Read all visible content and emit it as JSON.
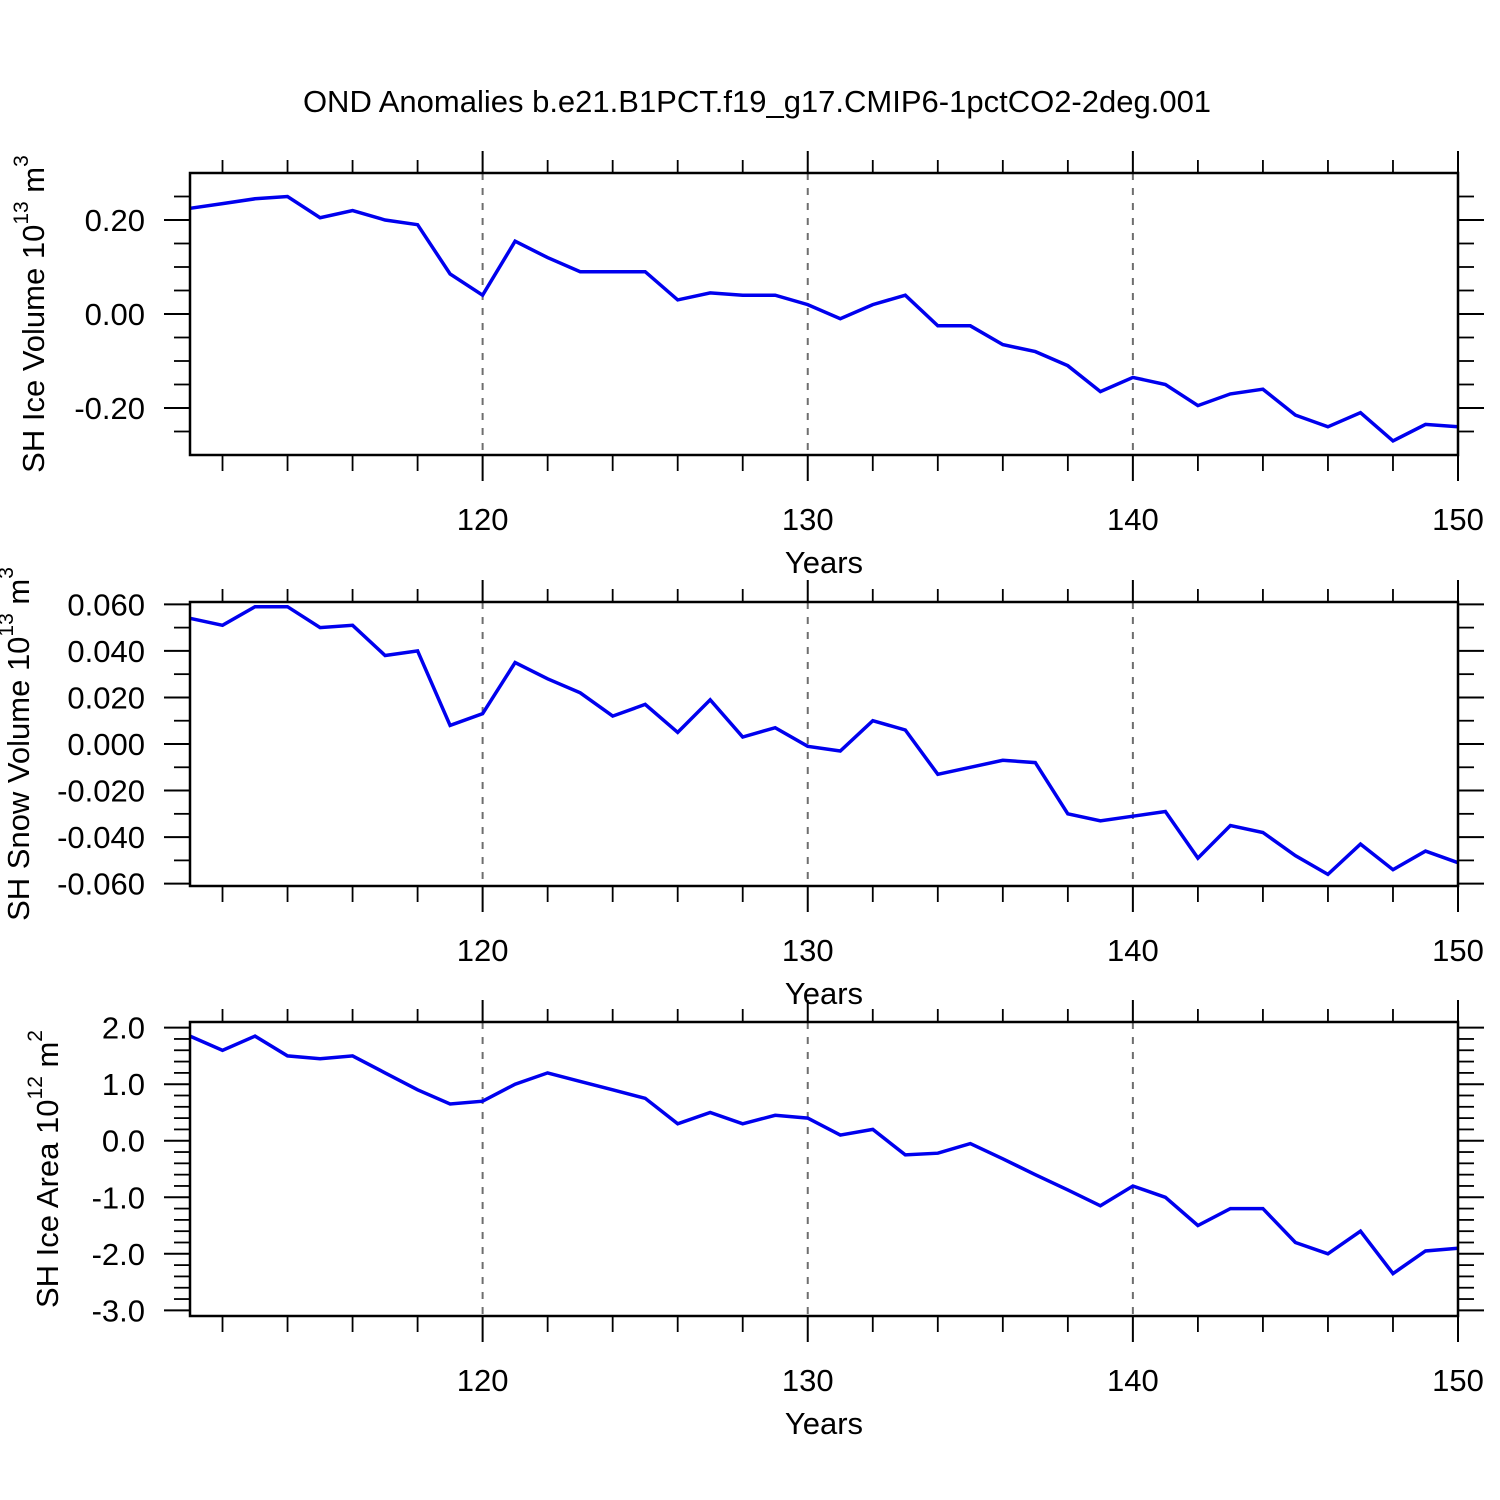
{
  "figure": {
    "title": "OND Anomalies b.e21.B1PCT.f19_g17.CMIP6-1pctCO2-2deg.001"
  },
  "colors": {
    "line": "#0000EE",
    "grid": "#6E6E6E",
    "axis": "#000000",
    "background": "#FFFFFF"
  },
  "chart_data": [
    {
      "type": "line",
      "name": "sh-ice-volume",
      "ylabel": "SH Ice Volume 10^13 m^3",
      "ylabel_parts": [
        {
          "text": "SH Ice Volume 10"
        },
        {
          "text": "13",
          "sup": true
        },
        {
          "text": " m"
        },
        {
          "text": "3",
          "sup": true
        }
      ],
      "xlabel": "Years",
      "xlim": [
        111,
        150
      ],
      "ylim": [
        -0.3,
        0.3
      ],
      "xticks": {
        "major": [
          120,
          130,
          140,
          150
        ],
        "labels": [
          "120",
          "130",
          "140",
          "150"
        ],
        "minor_step": 2
      },
      "yticks": {
        "major": [
          0.2,
          0.0,
          -0.2
        ],
        "labels": [
          "0.20",
          "0.00",
          "-0.20"
        ],
        "minor_step": 0.05
      },
      "grid_x": [
        120,
        130,
        140
      ],
      "legend": "none",
      "grid": "vertical-dashed",
      "x": [
        111,
        112,
        113,
        114,
        115,
        116,
        117,
        118,
        119,
        120,
        121,
        122,
        123,
        124,
        125,
        126,
        127,
        128,
        129,
        130,
        131,
        132,
        133,
        134,
        135,
        136,
        137,
        138,
        139,
        140,
        141,
        142,
        143,
        144,
        145,
        146,
        147,
        148,
        149,
        150
      ],
      "values": [
        0.225,
        0.235,
        0.245,
        0.25,
        0.205,
        0.22,
        0.2,
        0.19,
        0.085,
        0.04,
        0.155,
        0.12,
        0.09,
        0.09,
        0.09,
        0.03,
        0.045,
        0.04,
        0.04,
        0.02,
        -0.01,
        0.02,
        0.04,
        -0.025,
        -0.025,
        -0.065,
        -0.08,
        -0.11,
        -0.165,
        -0.135,
        -0.15,
        -0.195,
        -0.17,
        -0.16,
        -0.215,
        -0.24,
        -0.21,
        -0.27,
        -0.235,
        -0.24
      ]
    },
    {
      "type": "line",
      "name": "sh-snow-volume",
      "ylabel": "SH Snow Volume 10^13 m^3",
      "ylabel_parts": [
        {
          "text": "SH Snow Volume 10"
        },
        {
          "text": "13",
          "sup": true
        },
        {
          "text": " m"
        },
        {
          "text": "3",
          "sup": true
        }
      ],
      "xlabel": "Years",
      "xlim": [
        111,
        150
      ],
      "ylim": [
        -0.061,
        0.061
      ],
      "xticks": {
        "major": [
          120,
          130,
          140,
          150
        ],
        "labels": [
          "120",
          "130",
          "140",
          "150"
        ],
        "minor_step": 2
      },
      "yticks": {
        "major": [
          0.06,
          0.04,
          0.02,
          0.0,
          -0.02,
          -0.04,
          -0.06
        ],
        "labels": [
          "0.060",
          "0.040",
          "0.020",
          "0.000",
          "-0.020",
          "-0.040",
          "-0.060"
        ],
        "minor_step": 0.01
      },
      "grid_x": [
        120,
        130,
        140
      ],
      "legend": "none",
      "grid": "vertical-dashed",
      "x": [
        111,
        112,
        113,
        114,
        115,
        116,
        117,
        118,
        119,
        120,
        121,
        122,
        123,
        124,
        125,
        126,
        127,
        128,
        129,
        130,
        131,
        132,
        133,
        134,
        135,
        136,
        137,
        138,
        139,
        140,
        141,
        142,
        143,
        144,
        145,
        146,
        147,
        148,
        149,
        150
      ],
      "values": [
        0.054,
        0.051,
        0.059,
        0.059,
        0.05,
        0.051,
        0.038,
        0.04,
        0.008,
        0.013,
        0.035,
        0.028,
        0.022,
        0.012,
        0.017,
        0.005,
        0.019,
        0.003,
        0.007,
        -0.001,
        -0.003,
        0.01,
        0.006,
        -0.013,
        -0.01,
        -0.007,
        -0.008,
        -0.03,
        -0.033,
        -0.031,
        -0.029,
        -0.049,
        -0.035,
        -0.038,
        -0.048,
        -0.056,
        -0.043,
        -0.054,
        -0.046,
        -0.051
      ]
    },
    {
      "type": "line",
      "name": "sh-ice-area",
      "ylabel": "SH Ice Area 10^12 m^2",
      "ylabel_parts": [
        {
          "text": "SH Ice Area 10"
        },
        {
          "text": "12",
          "sup": true
        },
        {
          "text": " m"
        },
        {
          "text": "2",
          "sup": true
        }
      ],
      "xlabel": "Years",
      "xlim": [
        111,
        150
      ],
      "ylim": [
        -3.1,
        2.1
      ],
      "xticks": {
        "major": [
          120,
          130,
          140,
          150
        ],
        "labels": [
          "120",
          "130",
          "140",
          "150"
        ],
        "minor_step": 2
      },
      "yticks": {
        "major": [
          2.0,
          1.0,
          0.0,
          -1.0,
          -2.0,
          -3.0
        ],
        "labels": [
          "2.0",
          "1.0",
          "0.0",
          "-1.0",
          "-2.0",
          "-3.0"
        ],
        "minor_step": 0.2
      },
      "grid_x": [
        120,
        130,
        140
      ],
      "legend": "none",
      "grid": "vertical-dashed",
      "x": [
        111,
        112,
        113,
        114,
        115,
        116,
        117,
        118,
        119,
        120,
        121,
        122,
        123,
        124,
        125,
        126,
        127,
        128,
        129,
        130,
        131,
        132,
        133,
        134,
        135,
        136,
        137,
        138,
        139,
        140,
        141,
        142,
        143,
        144,
        145,
        146,
        147,
        148,
        149,
        150
      ],
      "values": [
        1.85,
        1.6,
        1.85,
        1.5,
        1.45,
        1.5,
        1.2,
        0.9,
        0.65,
        0.7,
        1.0,
        1.2,
        1.05,
        0.9,
        0.75,
        0.3,
        0.5,
        0.3,
        0.45,
        0.4,
        0.1,
        0.2,
        -0.25,
        -0.22,
        -0.05,
        -0.32,
        -0.6,
        -0.87,
        -1.15,
        -0.8,
        -1.0,
        -1.5,
        -1.2,
        -1.2,
        -1.8,
        -2.0,
        -1.6,
        -2.35,
        -1.95,
        -1.9
      ]
    }
  ]
}
